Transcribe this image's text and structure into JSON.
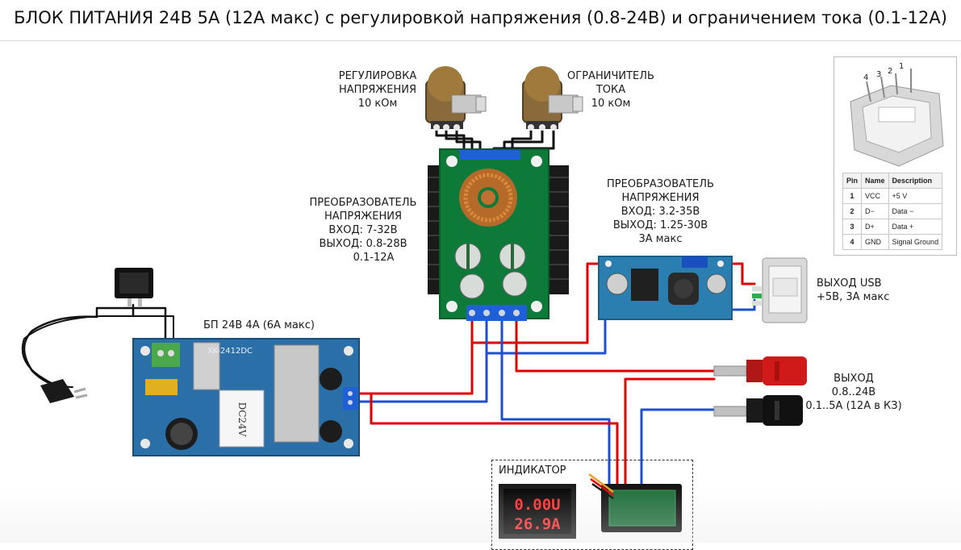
{
  "title": "БЛОК ПИТАНИЯ 24В 5А (12А макс) с регулировкой напряжения (0.8-24В) и ограничением тока (0.1-12А)",
  "labels": {
    "pot_voltage": [
      "РЕГУЛИРОВКА",
      "НАПРЯЖЕНИЯ",
      "10 кОм"
    ],
    "pot_current": [
      "ОГРАНИЧИТЕЛЬ",
      "ТОКА",
      "10 кОм"
    ],
    "converter_main": [
      "ПРЕОБРАЗОВАТЕЛЬ",
      "НАПРЯЖЕНИЯ",
      "ВХОД: 7-32В",
      "ВЫХОД: 0.8-28В",
      "0.1-12А"
    ],
    "converter_small": [
      "ПРЕОБРАЗОВАТЕЛЬ",
      "НАПРЯЖЕНИЯ",
      "ВХОД: 3.2-35В",
      "ВЫХОД: 1.25-30В",
      "3А макс"
    ],
    "psu": "БП 24В 4А (6А макс)",
    "usb_out": [
      "ВЫХОД USB",
      "+5В, 3А макс"
    ],
    "output": [
      "ВЫХОД",
      "0.8..24В",
      "0.1..5А (12А в КЗ)"
    ],
    "indicator": "ИНДИКАТОР"
  },
  "psu_board_text": "XK-2412DC",
  "psu_transformer_text": "DC24V",
  "display": {
    "top": "0.00U",
    "bottom": "26.9A"
  },
  "usb_pinout": {
    "pin_numbers": [
      "4",
      "3",
      "2",
      "1"
    ],
    "headers": [
      "Pin",
      "Name",
      "Description"
    ],
    "rows": [
      [
        "1",
        "VCC",
        "+5 V"
      ],
      [
        "2",
        "D−",
        "Data −"
      ],
      [
        "3",
        "D+",
        "Data +"
      ],
      [
        "4",
        "GND",
        "Signal Ground"
      ]
    ]
  },
  "colors": {
    "wire_red": "#e00000",
    "wire_blue": "#1f4fd1",
    "wire_black": "#111111",
    "pcb_blue": "#2a7fb0",
    "pcb_green": "#0e7a3a",
    "heatsink": "#1a1a1a"
  }
}
